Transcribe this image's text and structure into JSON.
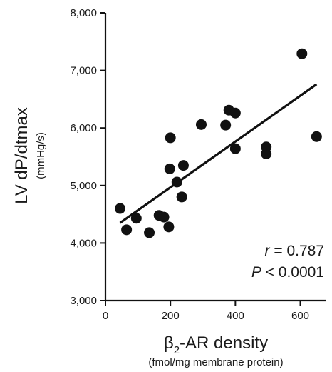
{
  "chart_data": {
    "type": "scatter",
    "title": "",
    "xlabel_prefix": "β",
    "xlabel_sub": "2",
    "xlabel_suffix": "-AR density",
    "xlabel_unit": "(fmol/mg membrane protein)",
    "ylabel": "LV dP/dtmax",
    "ylabel_unit": "(mmHg/s)",
    "xlim": [
      0,
      680
    ],
    "ylim": [
      3000,
      8000
    ],
    "x_ticks": [
      0,
      200,
      400,
      600
    ],
    "x_tick_labels": [
      "0",
      "200",
      "400",
      "600"
    ],
    "y_ticks": [
      3000,
      4000,
      5000,
      6000,
      7000,
      8000
    ],
    "y_tick_labels": [
      "3,000",
      "4,000",
      "5,000",
      "6,000",
      "7,000",
      "8,000"
    ],
    "grid": false,
    "points": [
      {
        "x": 45,
        "y": 4600
      },
      {
        "x": 65,
        "y": 4230
      },
      {
        "x": 95,
        "y": 4430
      },
      {
        "x": 135,
        "y": 4180
      },
      {
        "x": 165,
        "y": 4480
      },
      {
        "x": 180,
        "y": 4450
      },
      {
        "x": 195,
        "y": 4280
      },
      {
        "x": 198,
        "y": 5290
      },
      {
        "x": 200,
        "y": 5830
      },
      {
        "x": 220,
        "y": 5060
      },
      {
        "x": 235,
        "y": 4800
      },
      {
        "x": 240,
        "y": 5350
      },
      {
        "x": 295,
        "y": 6060
      },
      {
        "x": 370,
        "y": 6050
      },
      {
        "x": 380,
        "y": 6310
      },
      {
        "x": 400,
        "y": 6260
      },
      {
        "x": 400,
        "y": 5640
      },
      {
        "x": 495,
        "y": 5670
      },
      {
        "x": 495,
        "y": 5550
      },
      {
        "x": 605,
        "y": 7290
      },
      {
        "x": 650,
        "y": 5850
      }
    ],
    "regression_line": {
      "x": [
        45,
        650
      ],
      "y": [
        4350,
        6760
      ]
    },
    "annotations": {
      "r_label": "r",
      "r_value": " = 0.787",
      "p_label": "P",
      "p_value": " < 0.0001"
    }
  }
}
